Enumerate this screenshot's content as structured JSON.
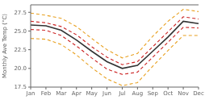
{
  "chart_data": {
    "type": "line",
    "ylabel": "Monthly Ave Temp (°C)",
    "categories": [
      "Jan",
      "Feb",
      "Mar",
      "Apr",
      "May",
      "Jun",
      "Jul",
      "Aug",
      "Sep",
      "Oct",
      "Nov",
      "Dec"
    ],
    "series": [
      {
        "color": "#e8a020",
        "line_style": "dashed",
        "values": [
          24.0,
          23.9,
          23.2,
          21.8,
          20.1,
          18.6,
          17.7,
          18.1,
          20.3,
          22.4,
          24.4,
          24.4
        ]
      },
      {
        "color": "#e8a020",
        "line_style": "dashed",
        "values": [
          27.4,
          27.1,
          26.7,
          25.6,
          24.0,
          22.5,
          21.4,
          22.0,
          24.3,
          26.3,
          27.9,
          27.6
        ]
      },
      {
        "color": "#cc2222",
        "line_style": "dashed",
        "values": [
          25.2,
          25.1,
          24.4,
          23.0,
          21.4,
          19.9,
          19.2,
          19.5,
          21.5,
          23.5,
          25.5,
          25.4
        ]
      },
      {
        "color": "#cc2222",
        "line_style": "dashed",
        "values": [
          26.3,
          26.1,
          25.6,
          24.5,
          22.9,
          21.5,
          20.5,
          20.9,
          22.9,
          24.9,
          26.9,
          26.6
        ]
      },
      {
        "color": "#333333",
        "line_style": "solid",
        "values": [
          25.8,
          25.7,
          25.1,
          23.8,
          22.3,
          20.9,
          20.0,
          20.4,
          22.3,
          24.2,
          26.3,
          26.0
        ]
      }
    ],
    "ylim": [
      17.5,
      28.5
    ],
    "yticks": [
      17.5,
      {
        "value": 20.0,
        "label": "20.0"
      },
      {
        "value": 22.5,
        "label": "22.5"
      },
      {
        "value": 25.0,
        "label": "25.0"
      },
      27.5
    ],
    "grid": false
  }
}
